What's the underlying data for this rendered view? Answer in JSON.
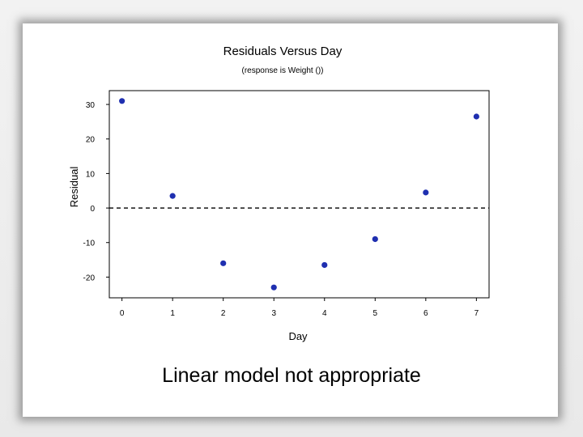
{
  "chart_data": {
    "type": "scatter",
    "title": "Residuals Versus Day",
    "subtitle": "(response is Weight ())",
    "xlabel": "Day",
    "ylabel": "Residual",
    "xlim": [
      -0.25,
      7.25
    ],
    "ylim": [
      -26,
      34
    ],
    "x_ticks": [
      "0",
      "1",
      "2",
      "3",
      "4",
      "5",
      "6",
      "7"
    ],
    "y_ticks": [
      "30",
      "20",
      "10",
      "0",
      "-10",
      "-20"
    ],
    "reference_line": 0,
    "grid": false,
    "point_color": "#1f2fb0",
    "points": [
      {
        "x": 0,
        "y": 31
      },
      {
        "x": 1,
        "y": 3.5
      },
      {
        "x": 2,
        "y": -16
      },
      {
        "x": 3,
        "y": -23
      },
      {
        "x": 4,
        "y": -16.5
      },
      {
        "x": 5,
        "y": -9
      },
      {
        "x": 6,
        "y": 4.5
      },
      {
        "x": 7,
        "y": 26.5
      }
    ]
  },
  "caption": "Linear model not appropriate"
}
